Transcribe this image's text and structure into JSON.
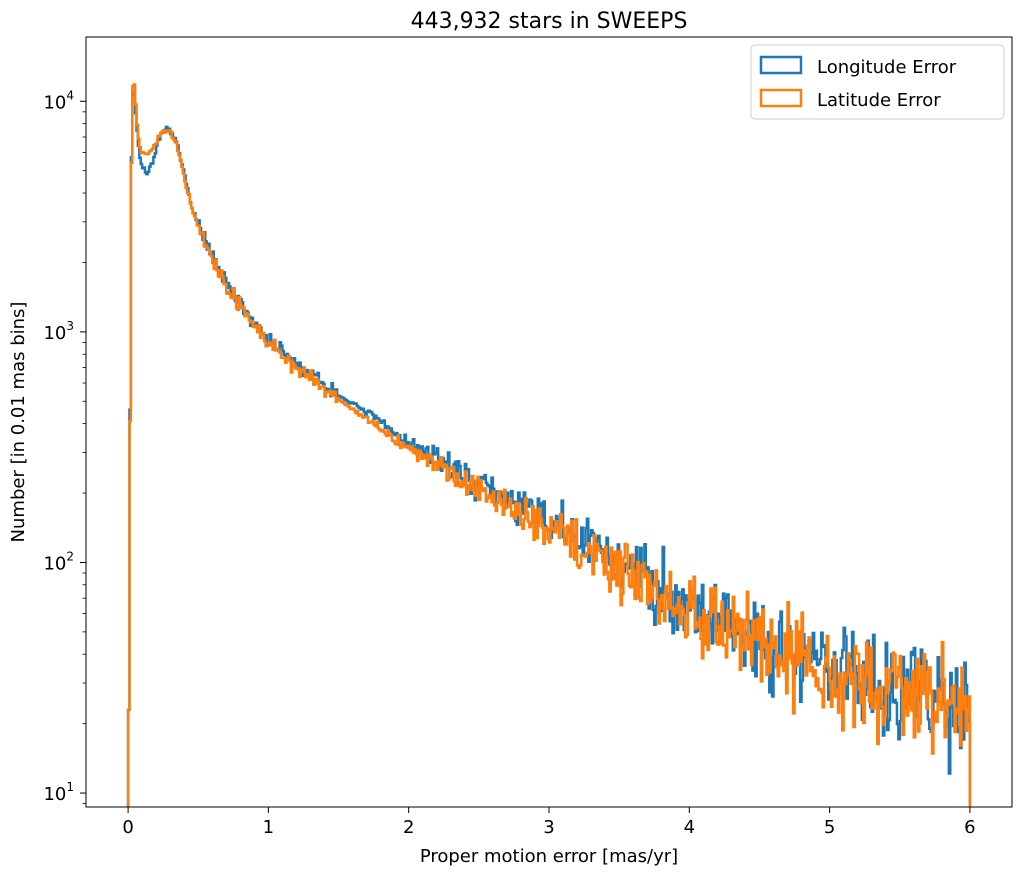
{
  "chart_data": {
    "type": "histogram-step",
    "title": "443,932 stars in SWEEPS",
    "xlabel": "Proper motion error [mas/yr]",
    "ylabel": "Number [in 0.01 mas bins]",
    "yscale": "log",
    "xlim": [
      -0.3,
      6.3
    ],
    "ylim": [
      8.7,
      19000
    ],
    "bin_width": 0.01,
    "x_range": [
      0,
      6
    ],
    "x_ticks": [
      0,
      1,
      2,
      3,
      4,
      5,
      6
    ],
    "x_tick_labels": [
      "0",
      "1",
      "2",
      "3",
      "4",
      "5",
      "6"
    ],
    "y_major_ticks": [
      10,
      100,
      1000,
      10000
    ],
    "y_tick_labels": [
      "10",
      "10",
      "10",
      "10"
    ],
    "y_tick_exponents": [
      "1",
      "2",
      "3",
      "4"
    ],
    "legend_position": "top-right",
    "series": [
      {
        "name": "Longitude Error",
        "color": "#1f77b4",
        "shape_points": [
          [
            0.0,
            9
          ],
          [
            0.01,
            60
          ],
          [
            0.02,
            3500
          ],
          [
            0.03,
            9500
          ],
          [
            0.04,
            12000
          ],
          [
            0.05,
            10000
          ],
          [
            0.06,
            8000
          ],
          [
            0.08,
            6000
          ],
          [
            0.1,
            5100
          ],
          [
            0.14,
            4900
          ],
          [
            0.18,
            5600
          ],
          [
            0.22,
            6800
          ],
          [
            0.27,
            7600
          ],
          [
            0.3,
            7500
          ],
          [
            0.35,
            6500
          ],
          [
            0.4,
            4800
          ],
          [
            0.45,
            3600
          ],
          [
            0.5,
            2900
          ],
          [
            0.6,
            2100
          ],
          [
            0.7,
            1600
          ],
          [
            0.8,
            1300
          ],
          [
            1.0,
            930
          ],
          [
            1.2,
            720
          ],
          [
            1.5,
            530
          ],
          [
            1.7,
            450
          ],
          [
            2.0,
            330
          ],
          [
            2.5,
            220
          ],
          [
            3.0,
            150
          ],
          [
            3.5,
            100
          ],
          [
            4.0,
            66
          ],
          [
            4.5,
            47
          ],
          [
            5.0,
            36
          ],
          [
            5.5,
            29
          ],
          [
            6.0,
            24
          ]
        ],
        "noise_amplitude": 0.35,
        "noise_seed": 7
      },
      {
        "name": "Latitude Error",
        "color": "#ff7f0e",
        "shape_points": [
          [
            0.0,
            9
          ],
          [
            0.01,
            60
          ],
          [
            0.02,
            3000
          ],
          [
            0.03,
            10000
          ],
          [
            0.04,
            13000
          ],
          [
            0.05,
            11000
          ],
          [
            0.06,
            8500
          ],
          [
            0.08,
            6500
          ],
          [
            0.1,
            6000
          ],
          [
            0.14,
            6000
          ],
          [
            0.18,
            6300
          ],
          [
            0.22,
            7000
          ],
          [
            0.27,
            7500
          ],
          [
            0.3,
            7400
          ],
          [
            0.35,
            6400
          ],
          [
            0.4,
            4700
          ],
          [
            0.45,
            3500
          ],
          [
            0.5,
            2850
          ],
          [
            0.6,
            2050
          ],
          [
            0.7,
            1580
          ],
          [
            0.8,
            1280
          ],
          [
            1.0,
            900
          ],
          [
            1.2,
            700
          ],
          [
            1.5,
            510
          ],
          [
            1.7,
            420
          ],
          [
            2.0,
            310
          ],
          [
            2.5,
            205
          ],
          [
            3.0,
            140
          ],
          [
            3.5,
            95
          ],
          [
            4.0,
            62
          ],
          [
            4.5,
            45
          ],
          [
            5.0,
            34
          ],
          [
            5.5,
            28
          ],
          [
            6.0,
            23
          ]
        ],
        "noise_amplitude": 0.32,
        "noise_seed": 13
      }
    ]
  }
}
